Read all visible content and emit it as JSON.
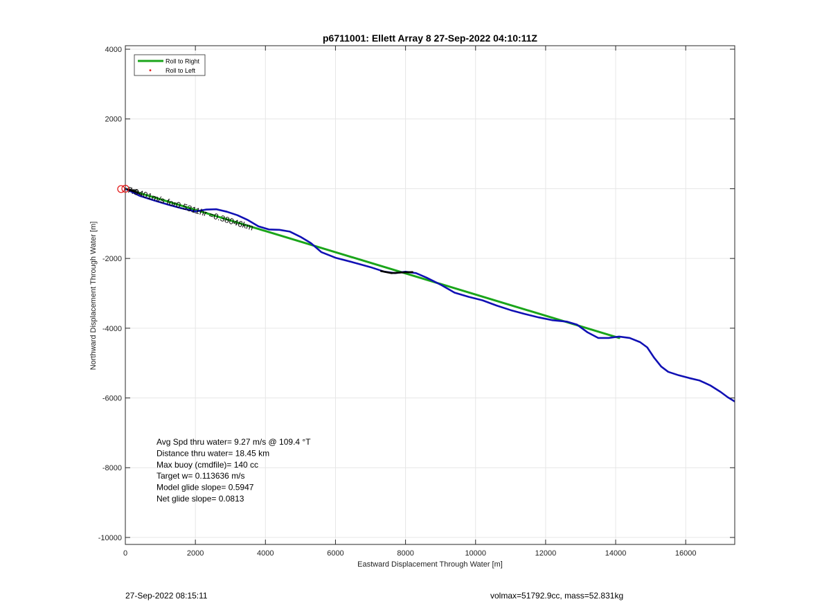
{
  "chart_data": {
    "type": "line",
    "title": "p6711001: Ellett Array 8 27-Sep-2022 04:10:11Z",
    "xlabel": "Eastward Displacement Through Water [m]",
    "ylabel": "Northward Displacement Through Water [m]",
    "xlim": [
      0,
      17400
    ],
    "ylim": [
      -10200,
      4100
    ],
    "xticks": [
      0,
      2000,
      4000,
      6000,
      8000,
      10000,
      12000,
      14000,
      16000
    ],
    "yticks": [
      4000,
      2000,
      0,
      -2000,
      -4000,
      -6000,
      -8000,
      -10000
    ],
    "ytick_labels": [
      "4000",
      "2000",
      "",
      "-2000",
      "-4000",
      "-6000",
      "-8000",
      "-10000"
    ],
    "grid": true,
    "legend_position": "top-left",
    "legend": [
      {
        "label": "Roll to Right",
        "color": "#1aa51a",
        "style": "line"
      },
      {
        "label": "Roll to Left",
        "color": "#e01010",
        "style": "dot"
      }
    ],
    "series": [
      {
        "name": "Roll to Right",
        "color": "#1aa51a",
        "x": [
          0,
          14100
        ],
        "y": [
          0,
          -4280
        ]
      },
      {
        "color": "#1010b4",
        "x": [
          0,
          400,
          800,
          1200,
          1600,
          2000,
          2300,
          2600,
          2900,
          3200,
          3500,
          3800,
          4100,
          4400,
          4700,
          5000,
          5300,
          5600,
          6000,
          6500,
          7000,
          7400,
          7700,
          8000,
          8300,
          8600,
          9000,
          9400,
          9800,
          10200,
          10600,
          11000,
          11400,
          11800,
          12200,
          12600,
          12900,
          13200,
          13500,
          13800,
          14100,
          14400,
          14700,
          14900,
          15100,
          15300,
          15500,
          15800,
          16100,
          16400,
          16700,
          17000,
          17200,
          17400
        ],
        "y": [
          0,
          -200,
          -330,
          -450,
          -560,
          -650,
          -600,
          -590,
          -660,
          -760,
          -900,
          -1080,
          -1170,
          -1180,
          -1230,
          -1380,
          -1560,
          -1820,
          -1980,
          -2110,
          -2250,
          -2380,
          -2420,
          -2380,
          -2420,
          -2550,
          -2750,
          -2980,
          -3100,
          -3200,
          -3350,
          -3480,
          -3590,
          -3690,
          -3770,
          -3810,
          -3900,
          -4120,
          -4280,
          -4280,
          -4240,
          -4280,
          -4400,
          -4550,
          -4850,
          -5100,
          -5250,
          -5350,
          -5430,
          -5500,
          -5640,
          -5830,
          -5980,
          -6100
        ]
      },
      {
        "color": "#000000",
        "x": [
          7300,
          7600,
          7900,
          8200
        ],
        "y": [
          -2360,
          -2420,
          -2400,
          -2390
        ]
      }
    ],
    "markers": [
      {
        "x": 0,
        "y": 0,
        "color": "#e01010",
        "shape": "circle"
      },
      {
        "x": -120,
        "y": -10,
        "color": "#e01010",
        "shape": "circle"
      }
    ],
    "annotations": [
      {
        "text": "7.9401m/s for0.5311hr =0.38046km",
        "x": 0,
        "y": 0,
        "rotation": 17,
        "color": "#000000"
      }
    ],
    "stats_lines": [
      "Avg Spd thru water=  9.27 m/s @ 109.4 °T",
      "Distance thru water= 18.45 km",
      "Max buoy (cmdfile)= 140 cc",
      "Target w= 0.113636 m/s",
      "Model glide slope= 0.5947",
      "Net glide slope= 0.0813"
    ]
  },
  "footer": {
    "left": "27-Sep-2022 08:15:11",
    "right": "volmax=51792.9cc, mass=52.831kg"
  }
}
